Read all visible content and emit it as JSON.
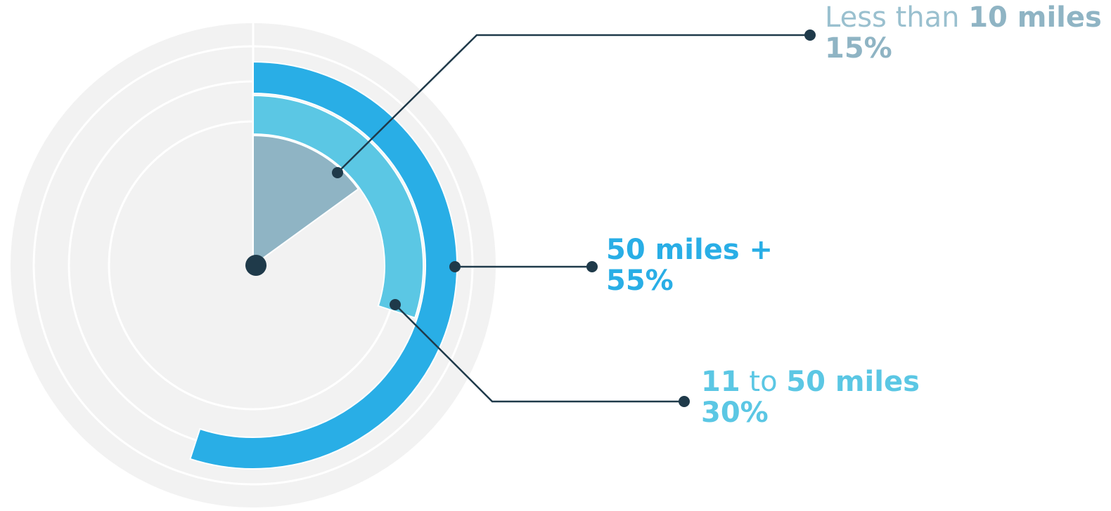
{
  "chart_data": {
    "type": "radial-bar",
    "title": "",
    "series": [
      {
        "label_prefix": "Less than ",
        "label_main": "10 miles",
        "label_connector": "",
        "label_end": "",
        "value": 15,
        "value_label": "15%",
        "color": "#8fb4c4"
      },
      {
        "label_prefix": "",
        "label_main": "11",
        "label_connector": " to ",
        "label_end": "50 miles",
        "value": 30,
        "value_label": "30%",
        "color": "#5bc7e4"
      },
      {
        "label_prefix": "",
        "label_main": "50 miles +",
        "label_connector": "",
        "label_end": "",
        "value": 55,
        "value_label": "55%",
        "color": "#29aee6"
      }
    ],
    "max": 100,
    "track_color": "#f2f2f2",
    "line_color": "#1f3a4a",
    "grid": false,
    "legend": "none"
  },
  "labels": {
    "less10": {
      "prefix": "Less than ",
      "main": "10 miles",
      "pct": "15%"
    },
    "plus50": {
      "main": "50 miles +",
      "pct": "55%"
    },
    "mid": {
      "start": "11",
      "connector": " to ",
      "end": "50 miles",
      "pct": "30%"
    }
  }
}
